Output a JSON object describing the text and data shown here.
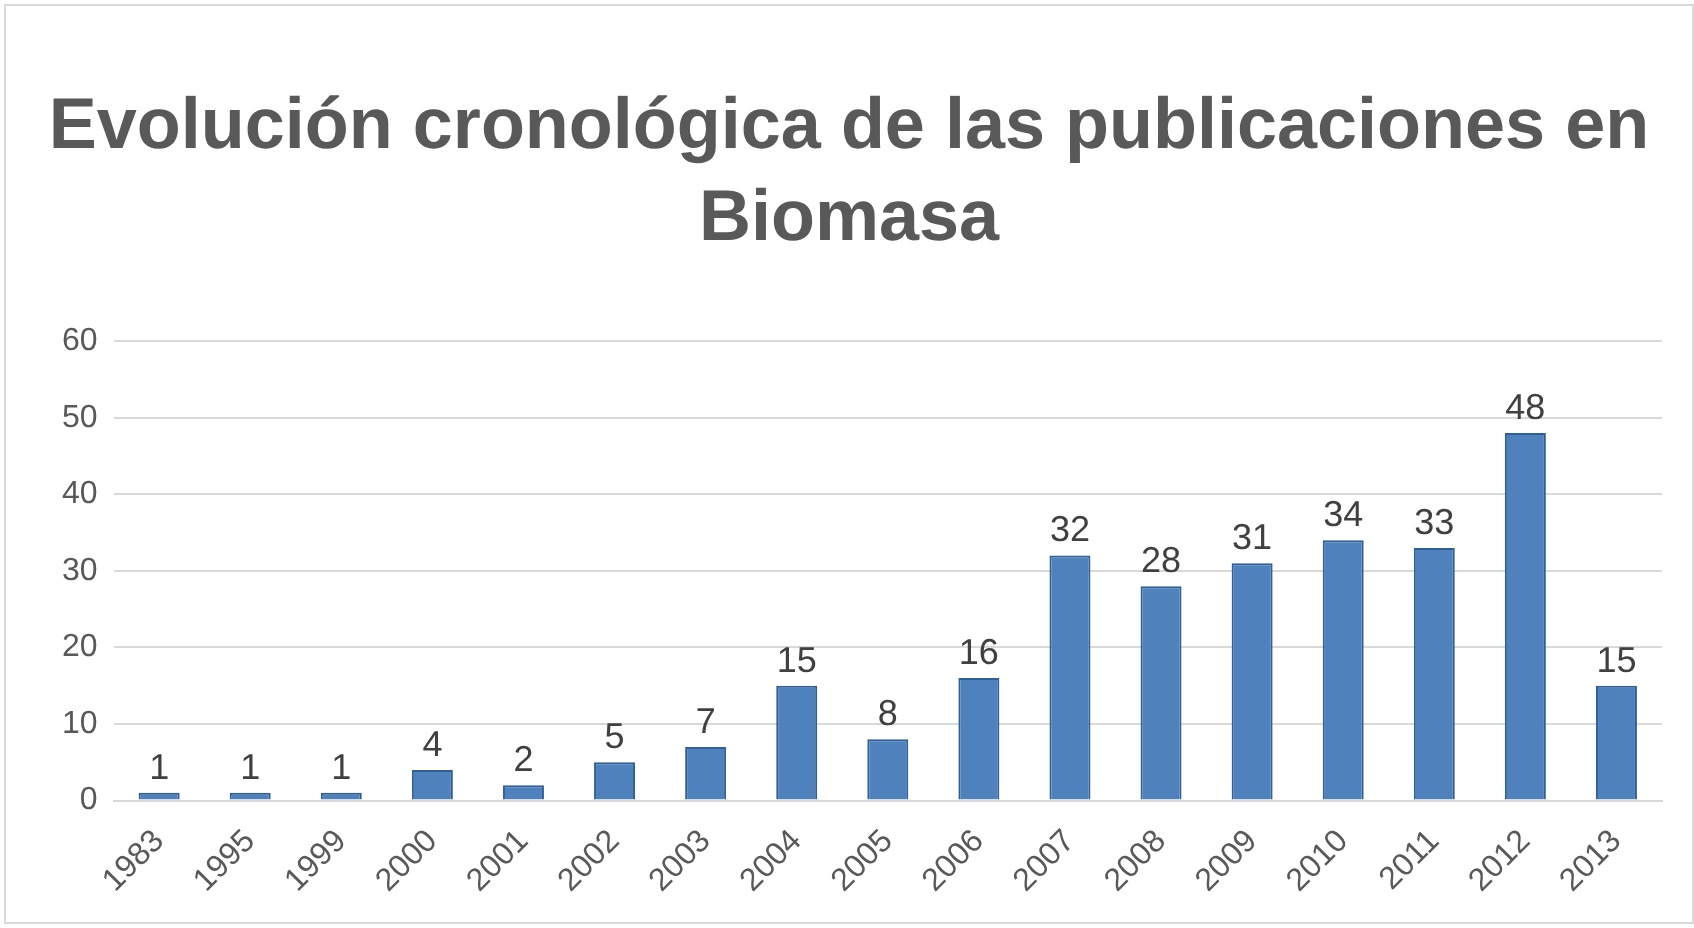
{
  "chart_data": {
    "type": "bar",
    "title": "Evolución cronológica de las publicaciones en Biomasa",
    "categories": [
      "1983",
      "1995",
      "1999",
      "2000",
      "2001",
      "2002",
      "2003",
      "2004",
      "2005",
      "2006",
      "2007",
      "2008",
      "2009",
      "2010",
      "2011",
      "2012",
      "2013"
    ],
    "values": [
      1,
      1,
      1,
      4,
      2,
      5,
      7,
      15,
      8,
      16,
      32,
      28,
      31,
      34,
      33,
      48,
      15
    ],
    "color": "#4f81bd",
    "ylim": [
      0,
      60
    ],
    "yticks": [
      0,
      10,
      20,
      30,
      40,
      50,
      60
    ],
    "grid": "y",
    "legend": false,
    "data_labels": true
  }
}
